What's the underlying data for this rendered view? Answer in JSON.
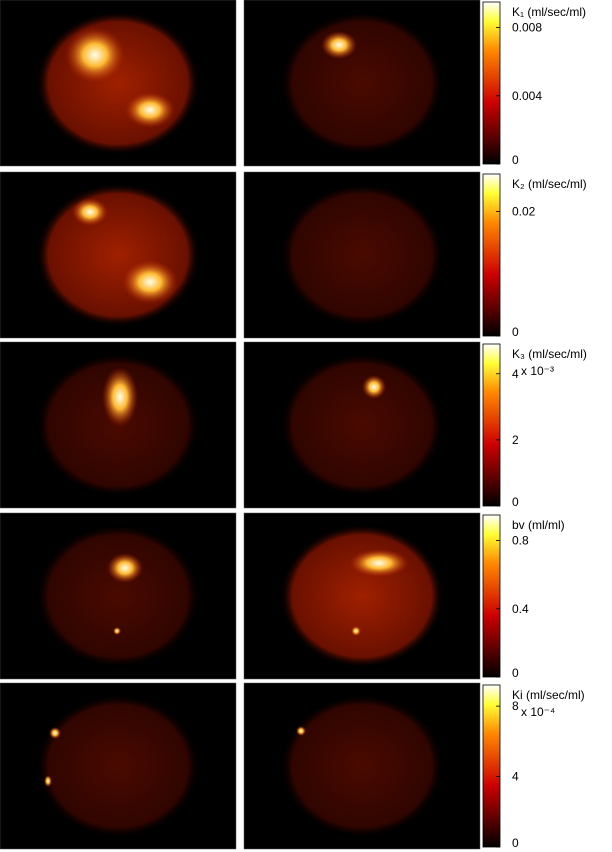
{
  "panels": [
    {
      "label": "K₁ (ml/sec/ml)",
      "lim": [
        0,
        0.0095
      ],
      "ticks": [
        0,
        0.004,
        0.008
      ]
    },
    {
      "label": "K₂ (ml/sec/ml)",
      "lim": [
        0,
        0.026
      ],
      "ticks": [
        0,
        0.02
      ]
    },
    {
      "label": "K₃ (ml/sec/ml)",
      "multiplier": "x 10⁻³",
      "lim": [
        0,
        4.9
      ],
      "ticks": [
        0,
        2,
        4
      ]
    },
    {
      "label": "bv (ml/ml)",
      "lim": [
        0,
        0.95
      ],
      "ticks": [
        0,
        0.4,
        0.8
      ]
    },
    {
      "label": "Ki (ml/sec/ml)",
      "multiplier": "x 10⁻⁴",
      "lim": [
        0,
        9.2
      ],
      "ticks": [
        0,
        4,
        8
      ]
    }
  ]
}
